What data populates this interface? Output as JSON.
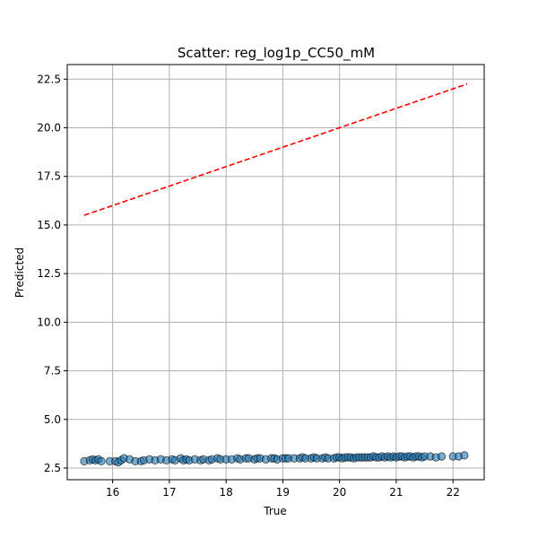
{
  "chart_data": {
    "type": "scatter",
    "title": "Scatter: reg_log1p_CC50_mM",
    "xlabel": "True",
    "ylabel": "Predicted",
    "xlim": [
      15.2,
      22.55
    ],
    "ylim": [
      1.9,
      23.25
    ],
    "xticks": [
      16,
      17,
      18,
      19,
      20,
      21,
      22
    ],
    "yticks": [
      2.5,
      5.0,
      7.5,
      10.0,
      12.5,
      15.0,
      17.5,
      20.0,
      22.5
    ],
    "ytick_labels": [
      "2.5",
      "5.0",
      "7.5",
      "10.0",
      "12.5",
      "15.0",
      "17.5",
      "20.0",
      "22.5"
    ],
    "grid": true,
    "colors": {
      "points": "#1f77b4",
      "point_edge": "#000000",
      "reference_line": "#ff0000",
      "grid": "#b0b0b0"
    },
    "reference_line": {
      "style": "dashed",
      "x": [
        15.5,
        22.25
      ],
      "y": [
        15.5,
        22.25
      ]
    },
    "points": {
      "x": [
        15.5,
        15.6,
        15.65,
        15.7,
        15.75,
        15.8,
        15.95,
        16.05,
        16.1,
        16.15,
        16.2,
        16.3,
        16.4,
        16.5,
        16.55,
        16.65,
        16.75,
        16.85,
        16.95,
        17.05,
        17.1,
        17.2,
        17.25,
        17.3,
        17.35,
        17.45,
        17.55,
        17.6,
        17.7,
        17.75,
        17.85,
        17.9,
        18.0,
        18.1,
        18.2,
        18.25,
        18.35,
        18.4,
        18.5,
        18.55,
        18.6,
        18.7,
        18.8,
        18.85,
        18.9,
        19.0,
        19.05,
        19.1,
        19.2,
        19.3,
        19.35,
        19.4,
        19.5,
        19.55,
        19.6,
        19.7,
        19.75,
        19.8,
        19.9,
        19.95,
        20.0,
        20.05,
        20.1,
        20.15,
        20.2,
        20.25,
        20.3,
        20.35,
        20.4,
        20.45,
        20.5,
        20.55,
        20.6,
        20.65,
        20.7,
        20.75,
        20.8,
        20.85,
        20.9,
        20.95,
        21.0,
        21.05,
        21.1,
        21.15,
        21.2,
        21.25,
        21.3,
        21.35,
        21.4,
        21.45,
        21.5,
        21.6,
        21.7,
        21.8,
        22.0,
        22.1,
        22.2
      ],
      "y": [
        2.85,
        2.9,
        2.95,
        2.9,
        2.95,
        2.85,
        2.85,
        2.85,
        2.8,
        2.9,
        3.0,
        2.95,
        2.85,
        2.85,
        2.9,
        2.95,
        2.9,
        2.95,
        2.9,
        2.95,
        2.9,
        3.0,
        2.9,
        2.95,
        2.9,
        2.95,
        2.9,
        2.95,
        2.9,
        2.95,
        3.0,
        2.95,
        2.95,
        2.95,
        3.0,
        2.95,
        3.0,
        3.0,
        2.95,
        3.0,
        3.0,
        2.95,
        3.0,
        3.0,
        2.95,
        3.0,
        3.0,
        3.0,
        3.0,
        3.0,
        3.05,
        3.0,
        3.0,
        3.05,
        3.0,
        3.0,
        3.05,
        3.0,
        3.0,
        3.05,
        3.05,
        3.0,
        3.05,
        3.05,
        3.05,
        3.0,
        3.05,
        3.05,
        3.05,
        3.05,
        3.05,
        3.05,
        3.1,
        3.05,
        3.05,
        3.1,
        3.05,
        3.1,
        3.05,
        3.1,
        3.05,
        3.1,
        3.1,
        3.05,
        3.1,
        3.1,
        3.05,
        3.1,
        3.1,
        3.05,
        3.1,
        3.1,
        3.05,
        3.1,
        3.1,
        3.1,
        3.15
      ]
    }
  }
}
